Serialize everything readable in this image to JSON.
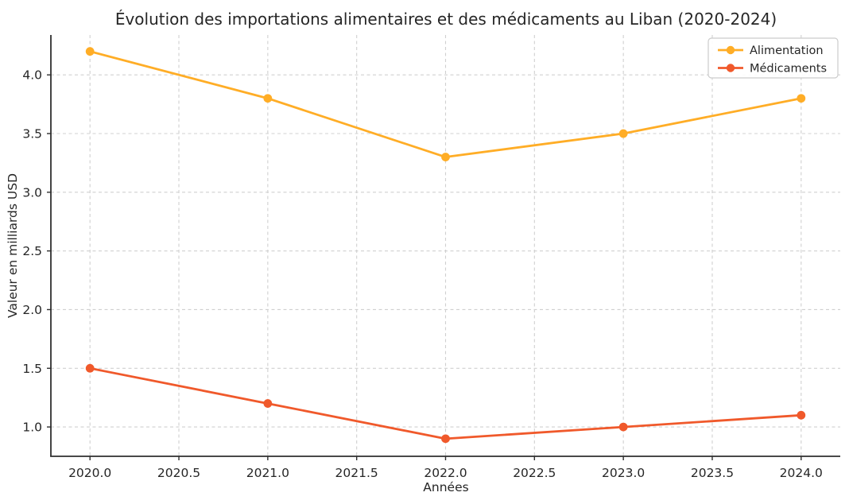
{
  "figure": {
    "background": "#FFFFFF"
  },
  "chart_data": {
    "type": "line",
    "title": "Évolution des importations alimentaires et des médicaments au Liban (2020-2024)",
    "xlabel": "Années",
    "ylabel": "Valeur en milliards USD",
    "x": [
      2020,
      2021,
      2022,
      2023,
      2024
    ],
    "series": [
      {
        "name": "Alimentation",
        "color": "#FFAD26",
        "values": [
          4.2,
          3.8,
          3.3,
          3.5,
          3.8
        ]
      },
      {
        "name": "Médicaments",
        "color": "#F0592B",
        "values": [
          1.5,
          1.2,
          0.9,
          1.0,
          1.1
        ]
      }
    ],
    "xtick_labels": [
      "2020.0",
      "2020.5",
      "2021.0",
      "2021.5",
      "2022.0",
      "2022.5",
      "2023.0",
      "2023.5",
      "2024.0"
    ],
    "ytick_labels": [
      "1.0",
      "1.5",
      "2.0",
      "2.5",
      "3.0",
      "3.5",
      "4.0"
    ],
    "xlim": [
      2019.78,
      2024.22
    ],
    "ylim": [
      0.75,
      4.34
    ],
    "grid": true,
    "grid_style": "dashed",
    "marker": "circle",
    "legend": {
      "position": "upper right",
      "entries": [
        "Alimentation",
        "Médicaments"
      ]
    },
    "colors": {
      "text": "#262626",
      "grid": "#D0D0D0",
      "spine": "#2F2F2F",
      "legend_border": "#CCCCCC",
      "background": "#FFFFFF"
    }
  }
}
